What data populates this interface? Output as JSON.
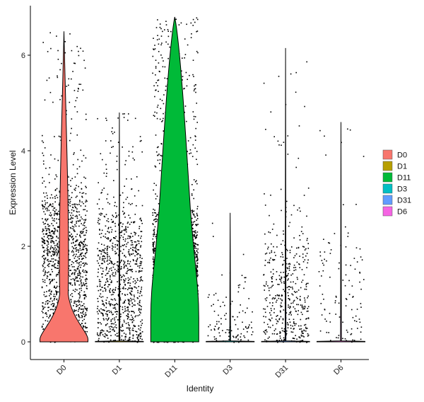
{
  "chart_data": {
    "type": "violin",
    "xlabel": "Identity",
    "ylabel": "Expression Level",
    "categories": [
      "D0",
      "D1",
      "D11",
      "D3",
      "D31",
      "D6"
    ],
    "ylim": [
      -0.45,
      6.9
    ],
    "yticks": [
      0,
      2,
      4,
      6
    ],
    "grid": false,
    "legend_position": "right",
    "series": [
      {
        "name": "D0",
        "color": "#F8766D",
        "max": 6.5,
        "cell_density": "high",
        "mode": 0.1,
        "secondary_mode": 2.3
      },
      {
        "name": "D1",
        "color": "#B79F00",
        "max": 4.8,
        "cell_density": "medium",
        "mode": 0.0,
        "secondary_mode": 1.9
      },
      {
        "name": "D11",
        "color": "#00BA38",
        "max": 6.8,
        "cell_density": "very-high",
        "mode": 0.6,
        "secondary_mode": 1.8
      },
      {
        "name": "D3",
        "color": "#00BFC4",
        "max": 2.7,
        "cell_density": "low",
        "mode": 0.0,
        "secondary_mode": 0.5
      },
      {
        "name": "D31",
        "color": "#619CFF",
        "max": 6.15,
        "cell_density": "low-medium",
        "mode": 0.0,
        "secondary_mode": 1.5
      },
      {
        "name": "D6",
        "color": "#F564E3",
        "max": 4.6,
        "cell_density": "low",
        "mode": 0.0,
        "secondary_mode": 1.4
      }
    ]
  }
}
